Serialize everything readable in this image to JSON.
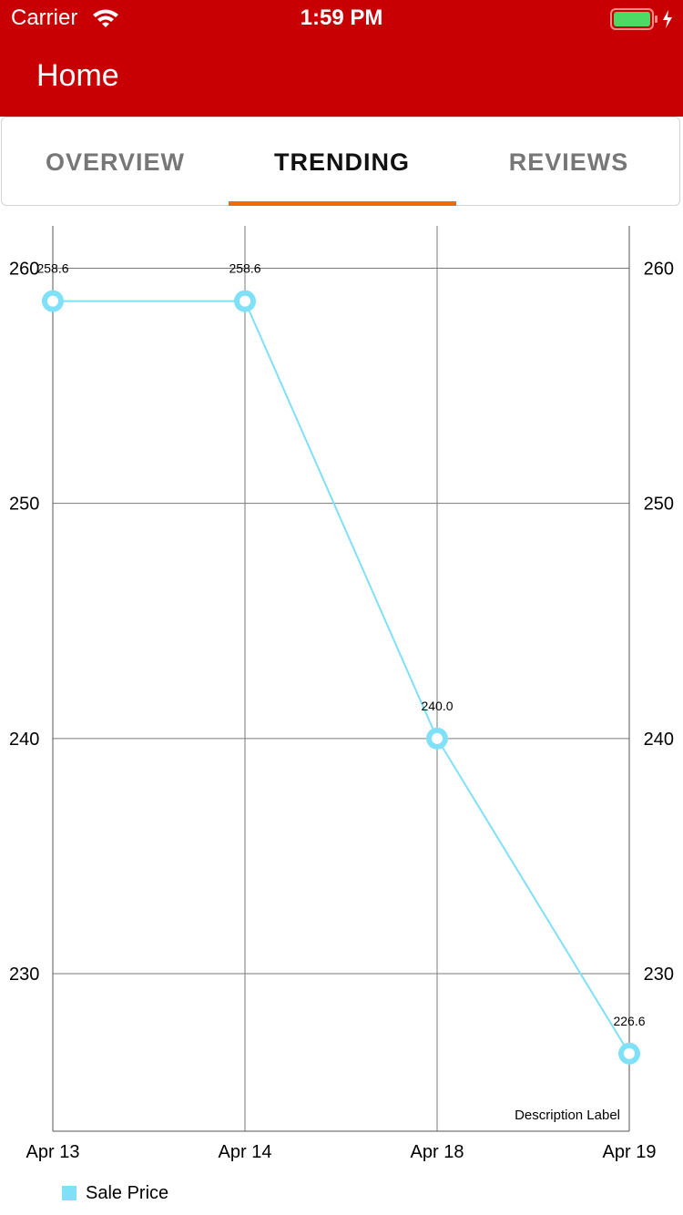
{
  "status_bar": {
    "carrier": "Carrier",
    "time": "1:59 PM",
    "wifi_icon": "wifi-icon",
    "battery_icon": "battery-charging-icon",
    "battery_color": "#4cd964"
  },
  "header": {
    "title": "Home",
    "background_color": "#c80004"
  },
  "tabs": [
    {
      "label": "OVERVIEW",
      "active": false
    },
    {
      "label": "TRENDING",
      "active": true
    },
    {
      "label": "REVIEWS",
      "active": false
    }
  ],
  "tab_indicator_color": "#ef6c00",
  "chart_data": {
    "type": "line",
    "categories": [
      "Apr 13",
      "Apr 14",
      "Apr 18",
      "Apr 19"
    ],
    "series": [
      {
        "name": "Sale Price",
        "values": [
          258.6,
          258.6,
          240.0,
          226.6
        ],
        "value_labels": [
          "258.6",
          "258.6",
          "240.0",
          "226.6"
        ],
        "color": "#7fe0f8"
      }
    ],
    "yticks": [
      230,
      240,
      250,
      260
    ],
    "ylim": [
      223.3,
      261.8
    ],
    "grid": true,
    "left_axis": true,
    "right_axis": true,
    "legend": "bottom-left",
    "description": "Description Label"
  }
}
